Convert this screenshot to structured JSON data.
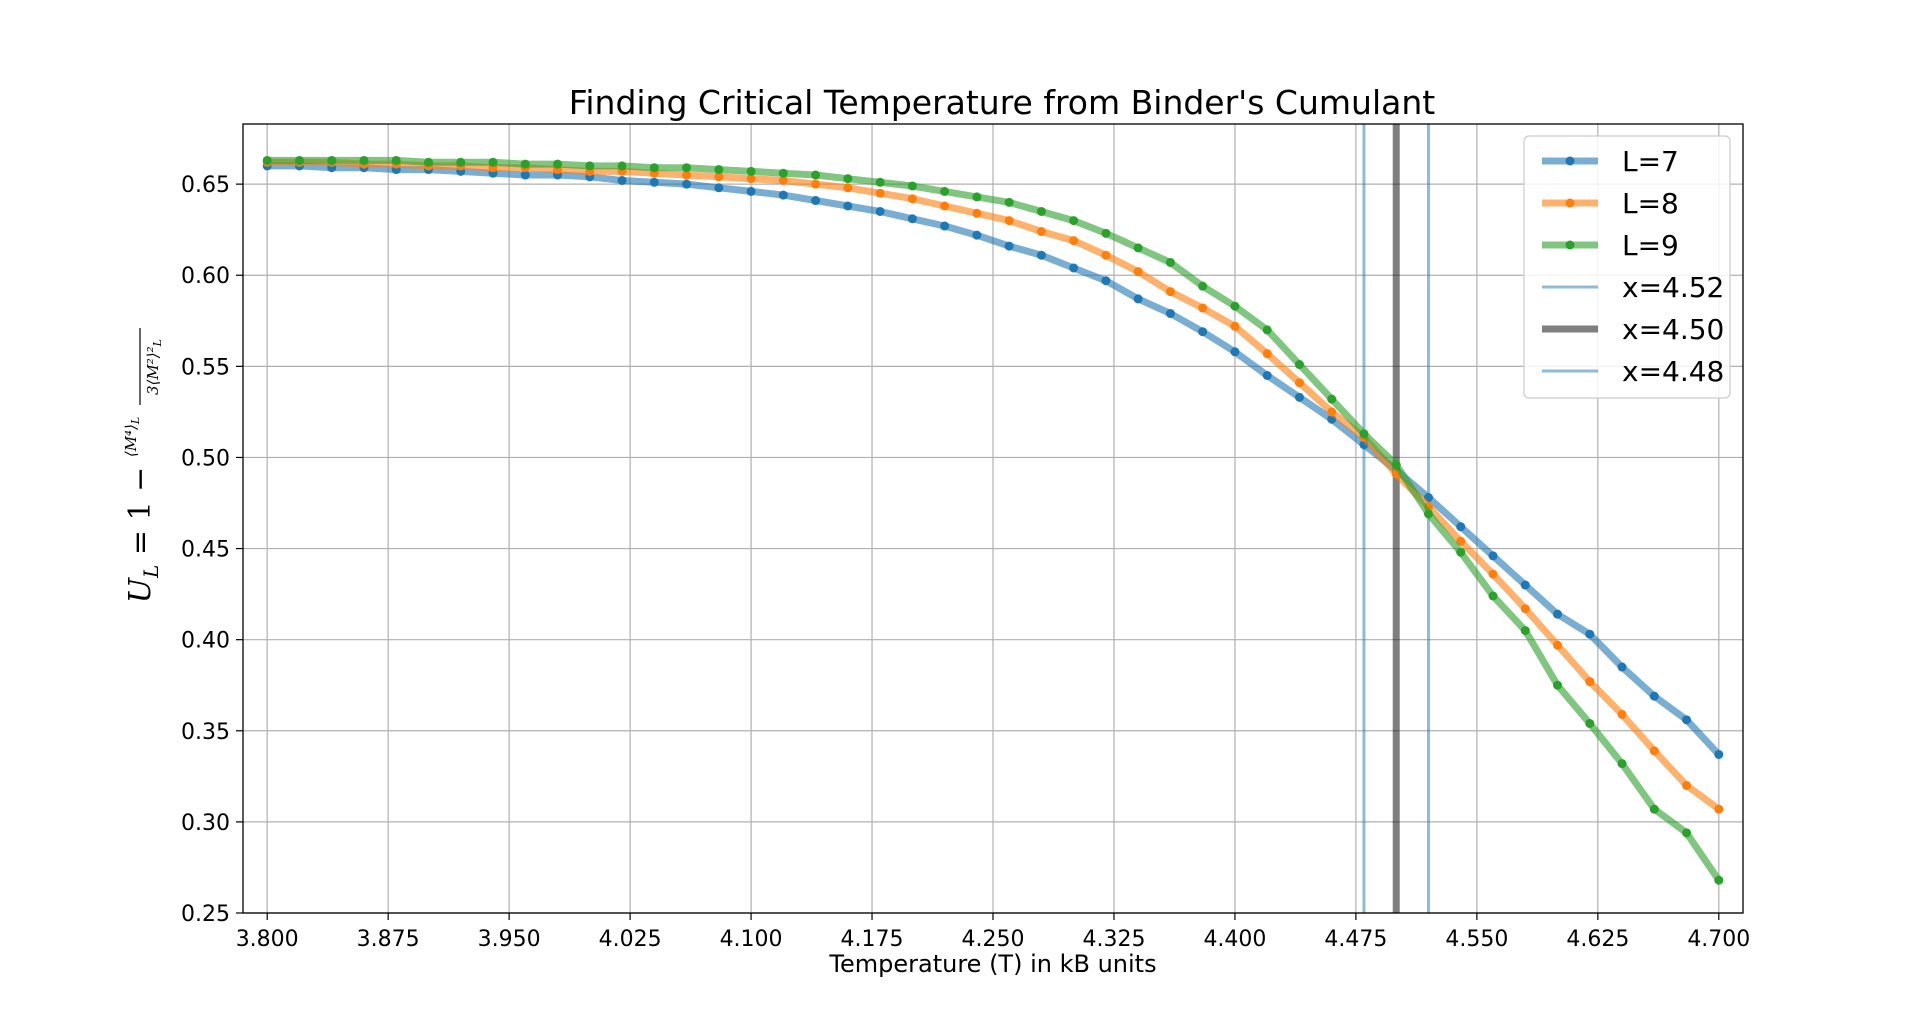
{
  "chart_data": {
    "type": "line",
    "title": "Finding Critical Temperature from Binder's Cumulant",
    "xlabel": "Temperature (T) in kB units",
    "ylabel": "U_L = 1 − ⟨M⁴⟩_L / 3⟨M²⟩²_L",
    "xlim": [
      3.785,
      4.715
    ],
    "ylim": [
      0.25,
      0.683
    ],
    "x_ticks": [
      "3.800",
      "3.875",
      "3.950",
      "4.025",
      "4.100",
      "4.175",
      "4.250",
      "4.325",
      "4.400",
      "4.475",
      "4.550",
      "4.625",
      "4.700"
    ],
    "y_ticks": [
      "0.25",
      "0.30",
      "0.35",
      "0.40",
      "0.45",
      "0.50",
      "0.55",
      "0.60",
      "0.65"
    ],
    "grid": true,
    "legend_position": "top-right",
    "x": [
      3.8,
      3.82,
      3.84,
      3.86,
      3.88,
      3.9,
      3.92,
      3.94,
      3.96,
      3.98,
      4.0,
      4.02,
      4.04,
      4.06,
      4.08,
      4.1,
      4.12,
      4.14,
      4.16,
      4.18,
      4.2,
      4.22,
      4.24,
      4.26,
      4.28,
      4.3,
      4.32,
      4.34,
      4.36,
      4.38,
      4.4,
      4.42,
      4.44,
      4.46,
      4.48,
      4.5,
      4.52,
      4.54,
      4.56,
      4.58,
      4.6,
      4.62,
      4.64,
      4.66,
      4.68,
      4.7
    ],
    "series": [
      {
        "name": "L=7",
        "color": "#1f77b4",
        "values": [
          0.66,
          0.66,
          0.659,
          0.659,
          0.658,
          0.658,
          0.657,
          0.656,
          0.655,
          0.655,
          0.654,
          0.652,
          0.651,
          0.65,
          0.648,
          0.646,
          0.644,
          0.641,
          0.638,
          0.635,
          0.631,
          0.627,
          0.622,
          0.616,
          0.611,
          0.604,
          0.597,
          0.587,
          0.579,
          0.569,
          0.558,
          0.545,
          0.533,
          0.521,
          0.507,
          0.493,
          0.478,
          0.462,
          0.446,
          0.43,
          0.414,
          0.403,
          0.385,
          0.369,
          0.356,
          0.337
        ]
      },
      {
        "name": "L=8",
        "color": "#ff7f0e",
        "values": [
          0.662,
          0.662,
          0.662,
          0.661,
          0.661,
          0.66,
          0.66,
          0.659,
          0.659,
          0.658,
          0.657,
          0.657,
          0.656,
          0.655,
          0.654,
          0.653,
          0.652,
          0.65,
          0.648,
          0.645,
          0.642,
          0.638,
          0.634,
          0.63,
          0.624,
          0.619,
          0.611,
          0.602,
          0.591,
          0.582,
          0.572,
          0.557,
          0.541,
          0.525,
          0.511,
          0.491,
          0.473,
          0.454,
          0.436,
          0.417,
          0.397,
          0.377,
          0.359,
          0.339,
          0.32,
          0.307
        ]
      },
      {
        "name": "L=9",
        "color": "#2ca02c",
        "values": [
          0.663,
          0.663,
          0.663,
          0.663,
          0.663,
          0.662,
          0.662,
          0.662,
          0.661,
          0.661,
          0.66,
          0.66,
          0.659,
          0.659,
          0.658,
          0.657,
          0.656,
          0.655,
          0.653,
          0.651,
          0.649,
          0.646,
          0.643,
          0.64,
          0.635,
          0.63,
          0.623,
          0.615,
          0.607,
          0.594,
          0.583,
          0.57,
          0.551,
          0.532,
          0.513,
          0.496,
          0.469,
          0.448,
          0.424,
          0.405,
          0.375,
          0.354,
          0.332,
          0.307,
          0.294,
          0.268
        ]
      }
    ],
    "vlines": [
      {
        "label": "x=4.52",
        "x": 4.52,
        "color": "#1f77b4",
        "alpha": 0.5,
        "width": 3
      },
      {
        "label": "x=4.50",
        "x": 4.5,
        "color": "#000000",
        "alpha": 0.5,
        "width": 7
      },
      {
        "label": "x=4.48",
        "x": 4.48,
        "color": "#1f77b4",
        "alpha": 0.5,
        "width": 3
      }
    ]
  }
}
